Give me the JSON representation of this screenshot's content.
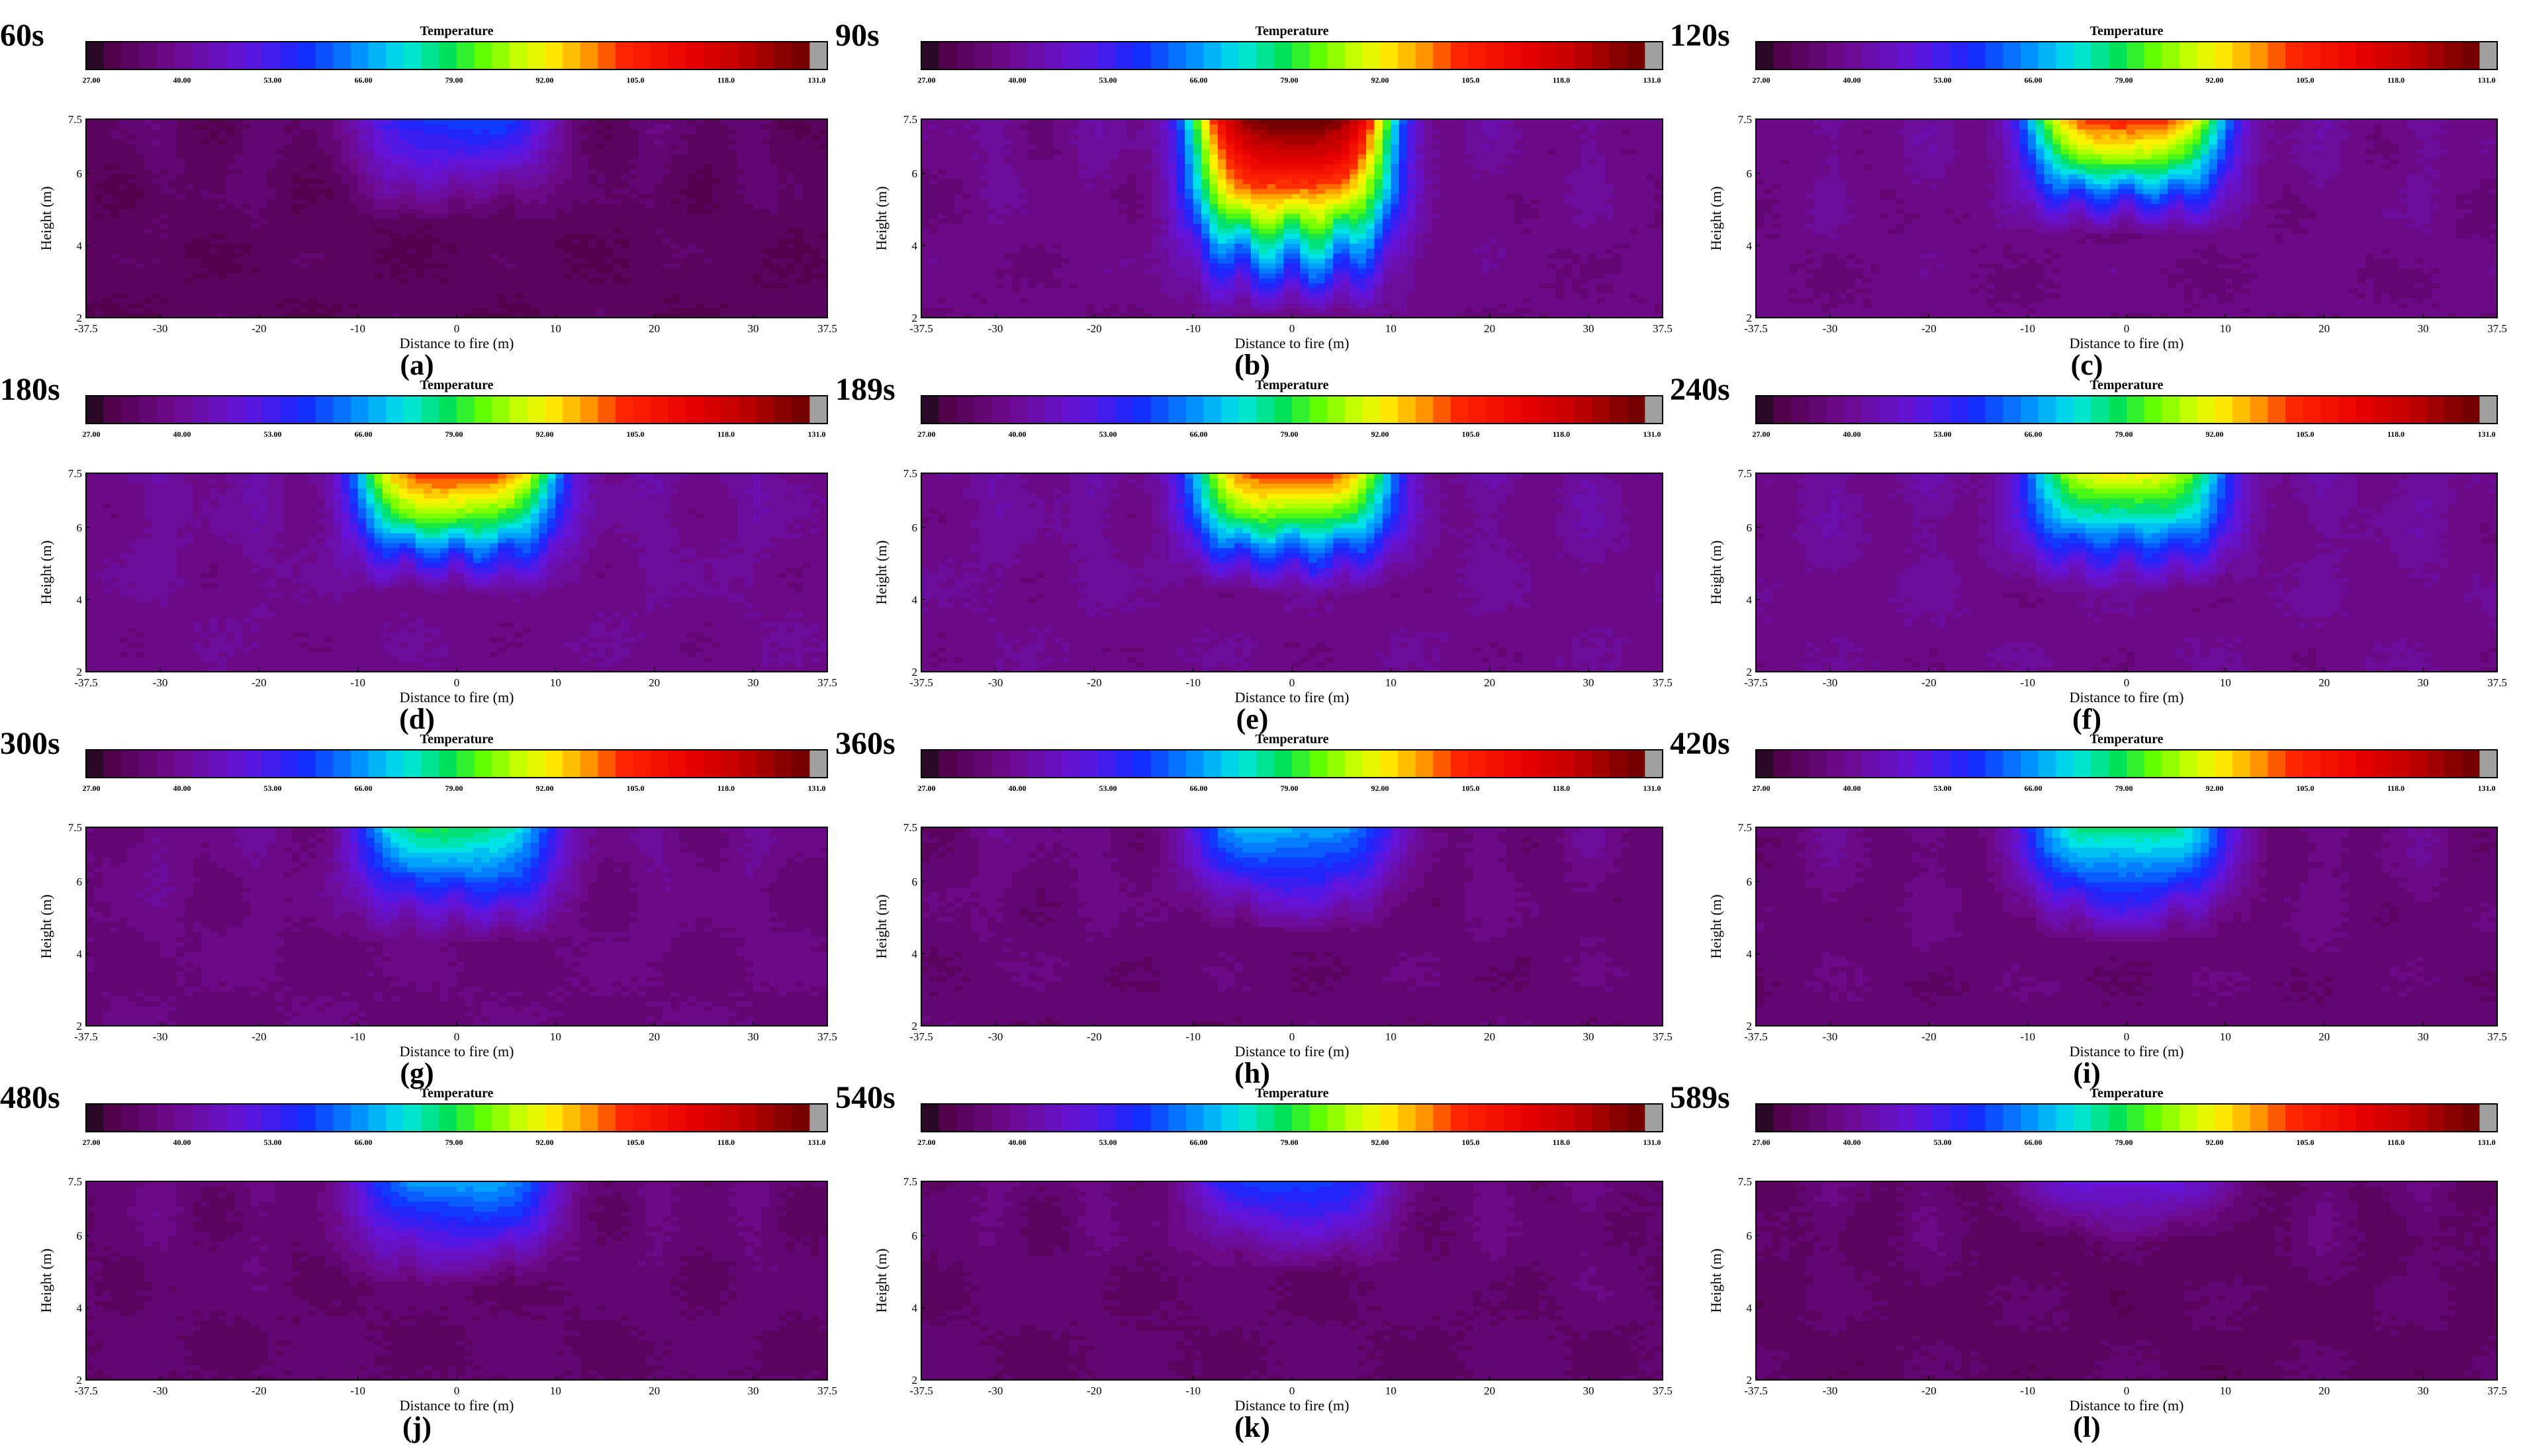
{
  "figure": {
    "colorbar": {
      "title": "Temperature",
      "tick_labels": [
        "27.00",
        "40.00",
        "53.00",
        "66.00",
        "79.00",
        "92.00",
        "105.0",
        "118.0",
        "131.0"
      ],
      "tick_values": [
        27,
        40,
        53,
        66,
        79,
        92,
        105,
        118,
        131
      ],
      "min": 27,
      "max": 131
    },
    "xlabel": "Distance to fire (m)",
    "ylabel": "Height (m)",
    "x_tick_labels": [
      "-37.5",
      "-30",
      "-20",
      "-10",
      "0",
      "10",
      "20",
      "30",
      "37.5"
    ],
    "x_tick_values": [
      -37.5,
      -30,
      -20,
      -10,
      0,
      10,
      20,
      30,
      37.5
    ],
    "y_tick_labels": [
      "2",
      "4",
      "6",
      "7.5"
    ],
    "y_tick_values": [
      2,
      4,
      6,
      7.5
    ]
  },
  "chart_data": [
    {
      "type": "heatmap",
      "panel": "(a)",
      "time": "60s",
      "xlim": [
        -37.5,
        37.5
      ],
      "ylim": [
        2,
        7.5
      ],
      "background": 33,
      "plume_peak": 60,
      "plume_depth": 4.6,
      "center_fingers": [
        -5,
        0,
        5
      ]
    },
    {
      "type": "heatmap",
      "panel": "(b)",
      "time": "90s",
      "xlim": [
        -37.5,
        37.5
      ],
      "ylim": [
        2,
        7.5
      ],
      "background": 38,
      "plume_peak": 131,
      "plume_depth": 2.0,
      "center_fingers": [
        -10,
        -5,
        0,
        5,
        10
      ]
    },
    {
      "type": "heatmap",
      "panel": "(c)",
      "time": "120s",
      "xlim": [
        -37.5,
        37.5
      ],
      "ylim": [
        2,
        7.5
      ],
      "background": 38,
      "plume_peak": 105,
      "plume_depth": 4.3,
      "center_fingers": [
        -10,
        -5,
        0,
        5,
        10
      ]
    },
    {
      "type": "heatmap",
      "panel": "(d)",
      "time": "180s",
      "xlim": [
        -37.5,
        37.5
      ],
      "ylim": [
        2,
        7.5
      ],
      "background": 39,
      "plume_peak": 105,
      "plume_depth": 4.2,
      "center_fingers": [
        -10,
        -5,
        0,
        5,
        10
      ]
    },
    {
      "type": "heatmap",
      "panel": "(e)",
      "time": "189s",
      "xlim": [
        -37.5,
        37.5
      ],
      "ylim": [
        2,
        7.5
      ],
      "background": 39,
      "plume_peak": 105,
      "plume_depth": 4.2,
      "center_fingers": [
        -10,
        -5,
        0,
        5,
        10
      ]
    },
    {
      "type": "heatmap",
      "panel": "(f)",
      "time": "240s",
      "xlim": [
        -37.5,
        37.5
      ],
      "ylim": [
        2,
        7.5
      ],
      "background": 39,
      "plume_peak": 92,
      "plume_depth": 4.2,
      "center_fingers": [
        -10,
        -5,
        0,
        5,
        10
      ]
    },
    {
      "type": "heatmap",
      "panel": "(g)",
      "time": "300s",
      "xlim": [
        -37.5,
        37.5
      ],
      "ylim": [
        2,
        7.5
      ],
      "background": 37,
      "plume_peak": 79,
      "plume_depth": 4.3,
      "center_fingers": [
        -10,
        -5,
        0,
        5,
        10
      ]
    },
    {
      "type": "heatmap",
      "panel": "(h)",
      "time": "360s",
      "xlim": [
        -37.5,
        37.5
      ],
      "ylim": [
        2,
        7.5
      ],
      "background": 36,
      "plume_peak": 70,
      "plume_depth": 4.6,
      "center_fingers": [
        -10,
        -5,
        5,
        10
      ]
    },
    {
      "type": "heatmap",
      "panel": "(i)",
      "time": "420s",
      "xlim": [
        -37.5,
        37.5
      ],
      "ylim": [
        2,
        7.5
      ],
      "background": 36,
      "plume_peak": 79,
      "plume_depth": 4.3,
      "center_fingers": [
        -10,
        -5,
        5,
        10
      ]
    },
    {
      "type": "heatmap",
      "panel": "(j)",
      "time": "480s",
      "xlim": [
        -37.5,
        37.5
      ],
      "ylim": [
        2,
        7.5
      ],
      "background": 35,
      "plume_peak": 68,
      "plume_depth": 4.6,
      "center_fingers": [
        -5,
        5,
        10
      ]
    },
    {
      "type": "heatmap",
      "panel": "(k)",
      "time": "540s",
      "xlim": [
        -37.5,
        37.5
      ],
      "ylim": [
        2,
        7.5
      ],
      "background": 35,
      "plume_peak": 60,
      "plume_depth": 5.0,
      "center_fingers": [
        -5,
        5
      ]
    },
    {
      "type": "heatmap",
      "panel": "(l)",
      "time": "589s",
      "xlim": [
        -37.5,
        37.5
      ],
      "ylim": [
        2,
        7.5
      ],
      "background": 34,
      "plume_peak": 50,
      "plume_depth": 5.8,
      "center_fingers": [
        -5,
        5
      ]
    }
  ]
}
